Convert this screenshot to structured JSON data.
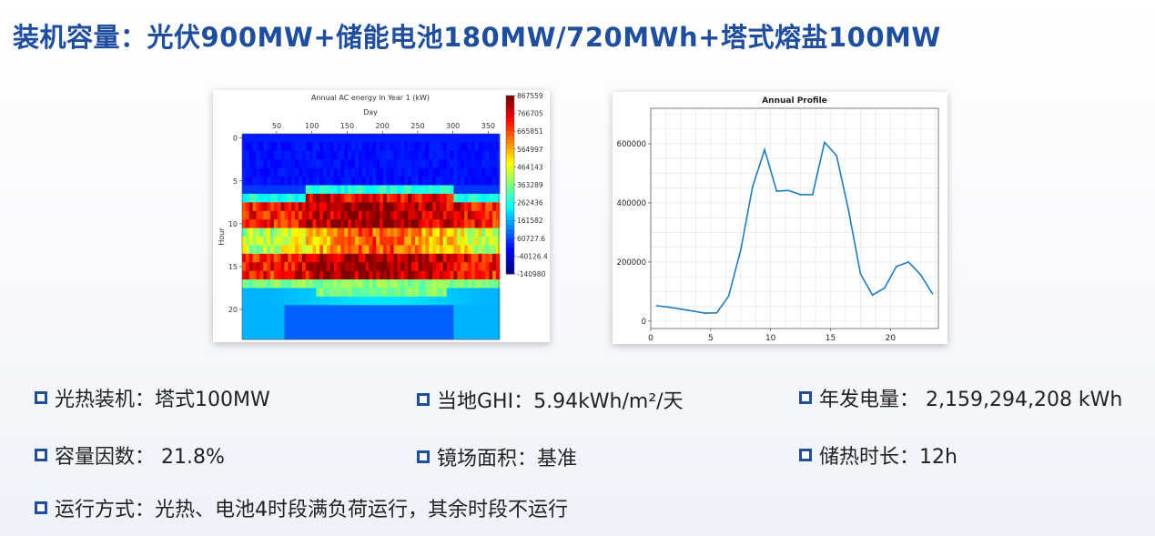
{
  "slide": {
    "title": "装机容量：光伏900MW+储能电池180MW/720MWh+塔式熔盐100MW"
  },
  "info": {
    "csp": "光热装机：塔式100MW",
    "ghi": "当地GHI：5.94kWh/m²/天",
    "annual_energy": "年发电量： 2,159,294,208 kWh",
    "capacity_factor": "容量因数： 21.8%",
    "field_area": "镜场面积：基准",
    "storage_hours": "储热时长：12h",
    "operation": "运行方式：光热、电池4时段满负荷运行，其余时段不运行"
  },
  "chart_data": [
    {
      "type": "heatmap",
      "title": "Annual AC energy in Year 1 (kW)",
      "xlabel": "Day",
      "ylabel": "Hour",
      "x_ticks": [
        50,
        100,
        150,
        200,
        250,
        300,
        350
      ],
      "y_ticks": [
        0,
        5,
        10,
        15,
        20
      ],
      "x_range": [
        1,
        365
      ],
      "y_range": [
        0,
        23
      ],
      "colorbar_ticks": [
        "867559",
        "766705",
        "665851",
        "564997",
        "464143",
        "363289",
        "262436",
        "161582",
        "60727.6",
        "-40126.4",
        "-140980"
      ],
      "colormap": "jet",
      "colorbar_range": [
        -140980,
        867559
      ]
    },
    {
      "type": "line",
      "title": "Annual Profile",
      "x": [
        0.5,
        1.5,
        2.5,
        3.5,
        4.5,
        5.5,
        6.5,
        7.5,
        8.5,
        9.5,
        10.5,
        11.5,
        12.5,
        13.5,
        14.5,
        15.5,
        16.5,
        17.5,
        18.5,
        19.5,
        20.5,
        21.5,
        22.5,
        23.5
      ],
      "values": [
        52000,
        47000,
        41000,
        34000,
        27000,
        28000,
        85000,
        240000,
        455000,
        580000,
        440000,
        442000,
        428000,
        428000,
        605000,
        560000,
        375000,
        160000,
        88000,
        112000,
        185000,
        200000,
        158000,
        93000
      ],
      "x_ticks": [
        0,
        5,
        10,
        15,
        20
      ],
      "y_ticks": [
        0,
        200000,
        400000,
        600000
      ],
      "xlim": [
        0,
        24
      ],
      "ylim": [
        -25000,
        720000
      ],
      "grid": true,
      "color": "#1f7bc0"
    }
  ]
}
